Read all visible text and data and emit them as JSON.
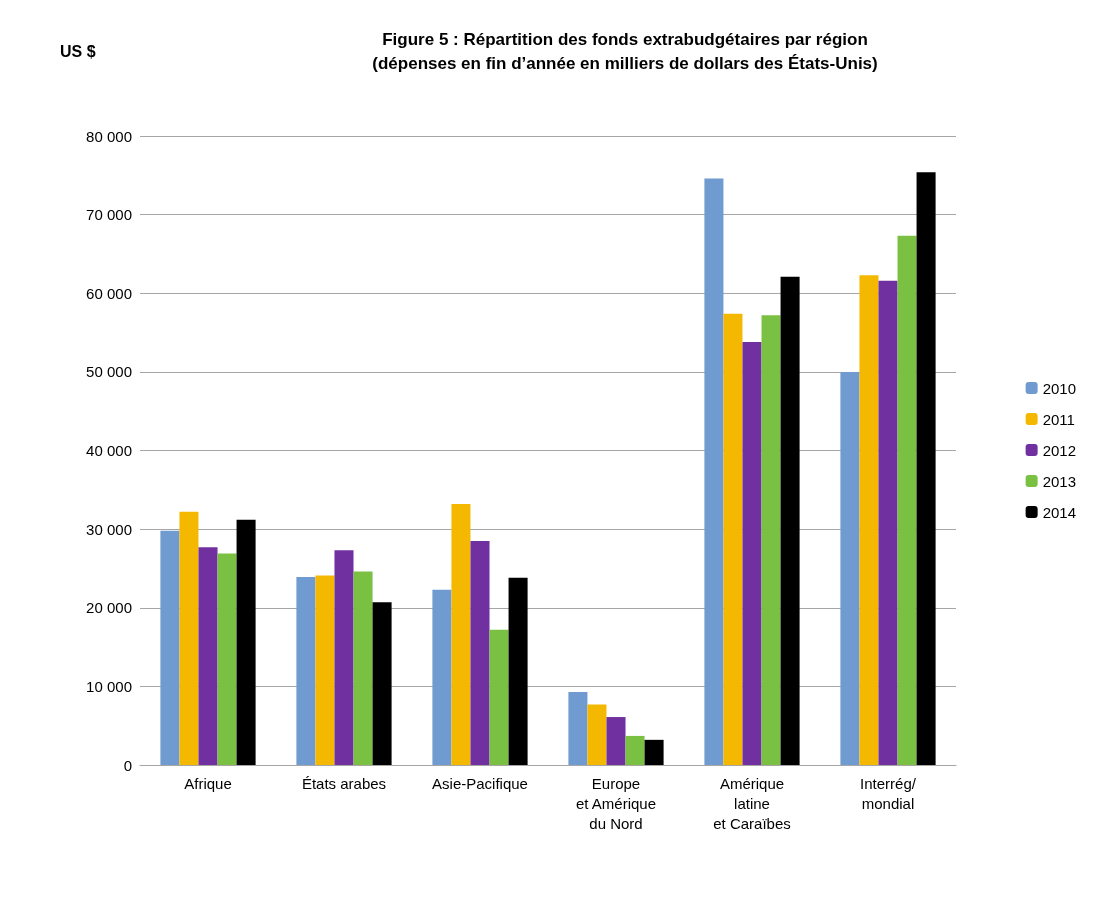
{
  "chart_data": {
    "type": "bar",
    "title": "Figure 5 : Répartition des fonds extrabudgétaires par région\n(dépenses en fin d’année en milliers de dollars des États-Unis)",
    "ylabel": "US $",
    "categories": [
      "Afrique",
      "États arabes",
      "Asie-Pacifique",
      "Europe\net Amérique\ndu Nord",
      "Amérique\nlatine\net Caraïbes",
      "Interrég/\nmondial"
    ],
    "series": [
      {
        "name": "2010",
        "color": "#6f9bd1",
        "values": [
          29800,
          23900,
          22300,
          9300,
          74600,
          50000
        ]
      },
      {
        "name": "2011",
        "color": "#f5b800",
        "values": [
          32200,
          24100,
          33200,
          7700,
          57400,
          62300
        ]
      },
      {
        "name": "2012",
        "color": "#7030a0",
        "values": [
          27700,
          27300,
          28500,
          6100,
          53800,
          61600
        ]
      },
      {
        "name": "2013",
        "color": "#7ac143",
        "values": [
          26900,
          24600,
          17200,
          3700,
          57200,
          67300
        ]
      },
      {
        "name": "2014",
        "color": "#000000",
        "values": [
          31200,
          20700,
          23800,
          3200,
          62100,
          75400
        ]
      }
    ],
    "ylim": [
      0,
      80000
    ],
    "yticks": [
      0,
      {
        "value": 10000,
        "label": "10 000"
      },
      {
        "value": 20000,
        "label": "20 000"
      },
      {
        "value": 30000,
        "label": "30 000"
      },
      {
        "value": 40000,
        "label": "40 000"
      },
      {
        "value": 50000,
        "label": "50 000"
      },
      {
        "value": 60000,
        "label": "60 000"
      },
      {
        "value": 70000,
        "label": "70 000"
      },
      {
        "value": 80000,
        "label": "80 000"
      }
    ],
    "grid": "y",
    "legend": "right"
  }
}
